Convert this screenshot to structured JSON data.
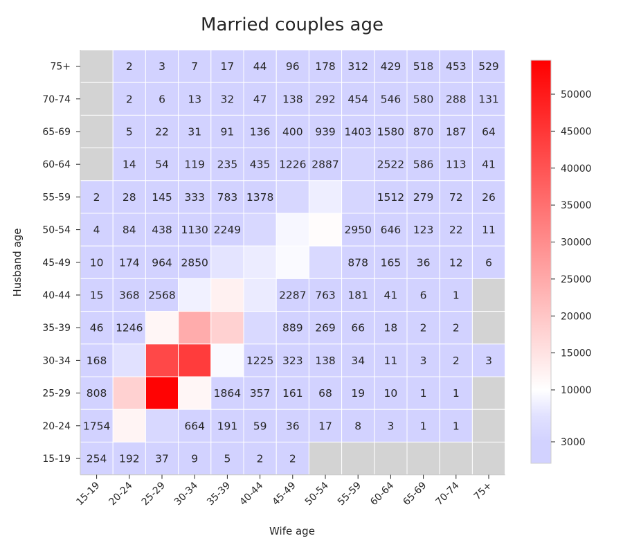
{
  "chart_data": {
    "type": "heatmap",
    "title": "Married couples age",
    "xlabel": "Wife age",
    "ylabel": "Husband age",
    "x_categories": [
      "15-19",
      "20-24",
      "25-29",
      "30-34",
      "35-39",
      "40-44",
      "45-49",
      "50-54",
      "55-59",
      "60-64",
      "65-69",
      "70-74",
      "75+"
    ],
    "y_categories": [
      "75+",
      "70-74",
      "65-69",
      "60-64",
      "55-59",
      "50-54",
      "45-49",
      "40-44",
      "35-39",
      "30-34",
      "25-29",
      "20-24",
      "15-19"
    ],
    "values": [
      [
        null,
        2,
        3,
        7,
        17,
        44,
        96,
        178,
        312,
        429,
        518,
        453,
        529
      ],
      [
        null,
        2,
        6,
        13,
        32,
        47,
        138,
        292,
        454,
        546,
        580,
        288,
        131
      ],
      [
        null,
        5,
        22,
        31,
        91,
        136,
        400,
        939,
        1403,
        1580,
        870,
        187,
        64
      ],
      [
        null,
        14,
        54,
        119,
        235,
        435,
        1226,
        2887,
        4300,
        2522,
        586,
        113,
        41
      ],
      [
        2,
        28,
        145,
        333,
        783,
        1378,
        4700,
        8200,
        4600,
        1512,
        279,
        72,
        26
      ],
      [
        4,
        84,
        438,
        1130,
        2249,
        5000,
        9200,
        10600,
        2950,
        646,
        123,
        22,
        11
      ],
      [
        10,
        174,
        964,
        2850,
        7000,
        8000,
        9500,
        5200,
        878,
        165,
        36,
        12,
        6
      ],
      [
        15,
        368,
        2568,
        8600,
        12500,
        7800,
        2287,
        763,
        181,
        41,
        6,
        1,
        null
      ],
      [
        46,
        1246,
        11500,
        24500,
        18000,
        5200,
        889,
        269,
        66,
        18,
        2,
        2,
        null
      ],
      [
        168,
        6500,
        42000,
        44000,
        9500,
        1225,
        323,
        138,
        34,
        11,
        3,
        2,
        3
      ],
      [
        808,
        18000,
        54000,
        11500,
        1864,
        357,
        161,
        68,
        19,
        10,
        1,
        1,
        null
      ],
      [
        1754,
        12000,
        5000,
        664,
        191,
        59,
        36,
        17,
        8,
        3,
        1,
        1,
        null
      ],
      [
        254,
        192,
        37,
        9,
        5,
        2,
        2,
        null,
        null,
        null,
        null,
        null,
        null
      ]
    ],
    "annotations": [
      [
        "",
        "2",
        "3",
        "7",
        "17",
        "44",
        "96",
        "178",
        "312",
        "429",
        "518",
        "453",
        "529"
      ],
      [
        "",
        "2",
        "6",
        "13",
        "32",
        "47",
        "138",
        "292",
        "454",
        "546",
        "580",
        "288",
        "131"
      ],
      [
        "",
        "5",
        "22",
        "31",
        "91",
        "136",
        "400",
        "939",
        "1403",
        "1580",
        "870",
        "187",
        "64"
      ],
      [
        "",
        "14",
        "54",
        "119",
        "235",
        "435",
        "1226",
        "2887",
        "",
        "2522",
        "586",
        "113",
        "41"
      ],
      [
        "2",
        "28",
        "145",
        "333",
        "783",
        "1378",
        "",
        "",
        "",
        "1512",
        "279",
        "72",
        "26"
      ],
      [
        "4",
        "84",
        "438",
        "1130",
        "2249",
        "",
        "",
        "",
        "2950",
        "646",
        "123",
        "22",
        "11"
      ],
      [
        "10",
        "174",
        "964",
        "2850",
        "",
        "",
        "",
        "",
        "878",
        "165",
        "36",
        "12",
        "6"
      ],
      [
        "15",
        "368",
        "2568",
        "",
        "",
        "",
        "2287",
        "763",
        "181",
        "41",
        "6",
        "1",
        ""
      ],
      [
        "46",
        "1246",
        "",
        "",
        "",
        "",
        "889",
        "269",
        "66",
        "18",
        "2",
        "2",
        ""
      ],
      [
        "168",
        "",
        "",
        "",
        "",
        "1225",
        "323",
        "138",
        "34",
        "11",
        "3",
        "2",
        "3"
      ],
      [
        "808",
        "",
        "",
        "",
        "1864",
        "357",
        "161",
        "68",
        "19",
        "10",
        "1",
        "1",
        ""
      ],
      [
        "1754",
        "",
        "",
        "664",
        "191",
        "59",
        "36",
        "17",
        "8",
        "3",
        "1",
        "1",
        ""
      ],
      [
        "254",
        "192",
        "37",
        "9",
        "5",
        "2",
        "2",
        "",
        "",
        "",
        "",
        "",
        ""
      ]
    ],
    "colorbar": {
      "ticks": [
        3000,
        10000,
        15000,
        20000,
        25000,
        30000,
        35000,
        40000,
        45000,
        50000
      ],
      "tick_labels": [
        "3000",
        "10000",
        "15000",
        "20000",
        "25000",
        "30000",
        "35000",
        "40000",
        "45000",
        "50000"
      ],
      "range": [
        0,
        54500
      ],
      "scale": "nonlinear-below-10000",
      "colors": {
        "low": "#d2d2ff",
        "mid": "#ffffff",
        "high": "#ff0000"
      },
      "placement": "right"
    },
    "missing_color": "#d3d3d3",
    "grid": false
  }
}
